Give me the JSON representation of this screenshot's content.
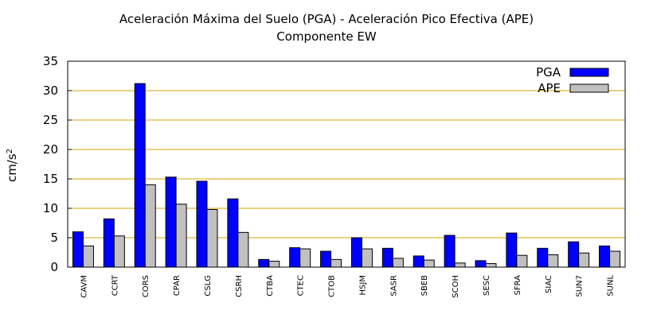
{
  "chart_data": {
    "type": "bar",
    "title": "Aceleración Máxima del Suelo (PGA) -  Aceleración Pico Efectiva (APE)",
    "subtitle": "Componente EW",
    "xlabel": "",
    "ylabel": "cm/s2",
    "ylim": [
      0,
      35
    ],
    "yticks": [
      0,
      5,
      10,
      15,
      20,
      25,
      30,
      35
    ],
    "grid": "horizontal",
    "legend_position": "top-right",
    "categories": [
      "CAVM",
      "CCRT",
      "CORS",
      "CPAR",
      "CSLG",
      "CSRH",
      "CTBA",
      "CTEC",
      "CTOB",
      "HSJM",
      "SASR",
      "SBEB",
      "SCOH",
      "SESC",
      "SFRA",
      "SIAC",
      "SUN7",
      "SUNL"
    ],
    "series": [
      {
        "name": "PGA",
        "color": "#0000ff",
        "values": [
          6.0,
          8.2,
          31.2,
          15.3,
          14.6,
          11.6,
          1.3,
          3.3,
          2.7,
          5.0,
          3.2,
          1.9,
          5.4,
          1.1,
          5.8,
          3.2,
          4.3,
          3.6
        ]
      },
      {
        "name": "APE",
        "color": "#c0c0c0",
        "values": [
          3.6,
          5.3,
          14.0,
          10.7,
          9.8,
          5.9,
          1.0,
          3.1,
          1.3,
          3.1,
          1.5,
          1.2,
          0.7,
          0.6,
          2.0,
          2.1,
          2.4,
          2.7
        ]
      }
    ]
  }
}
